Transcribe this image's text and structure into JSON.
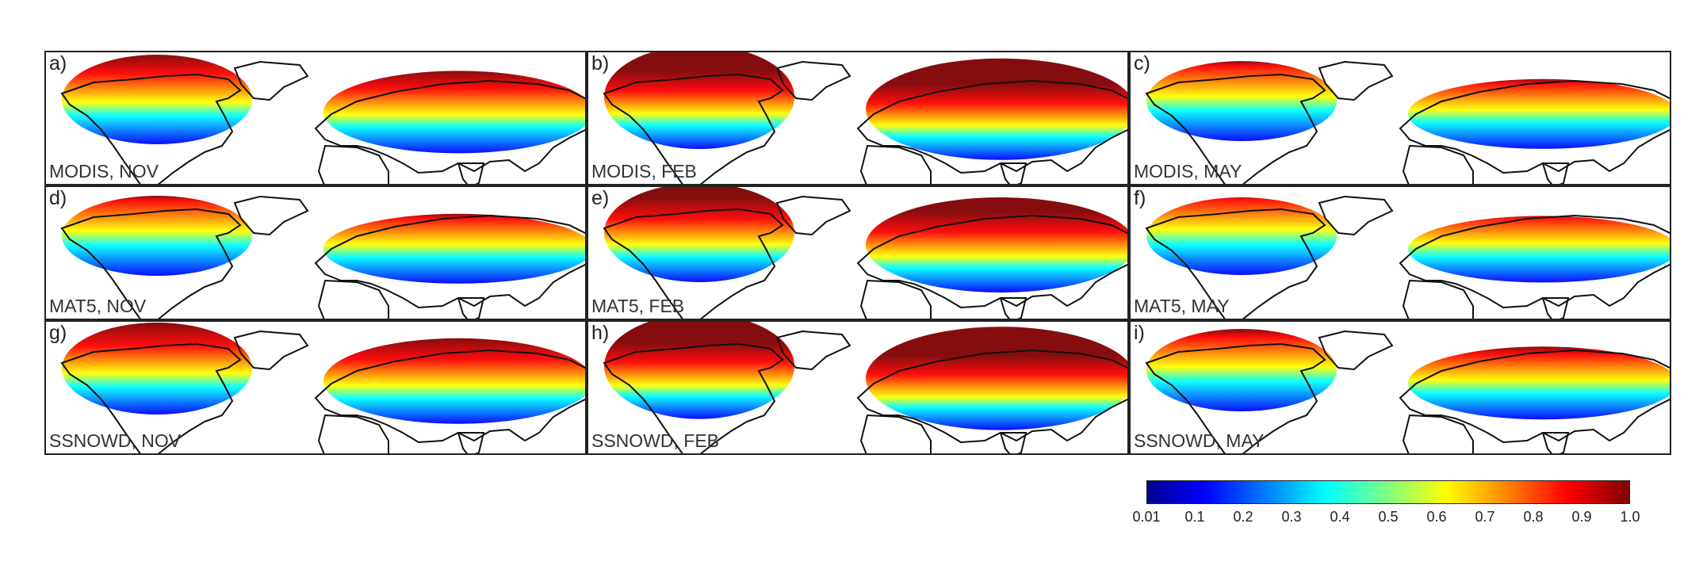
{
  "panels": [
    {
      "letter": "a)",
      "caption": "MODIS, NOV",
      "level": 0.55
    },
    {
      "letter": "b)",
      "caption": "MODIS, FEB",
      "level": 0.85
    },
    {
      "letter": "c)",
      "caption": "MODIS, MAY",
      "level": 0.35
    },
    {
      "letter": "d)",
      "caption": "MAT5, NOV",
      "level": 0.35
    },
    {
      "letter": "e)",
      "caption": "MAT5, FEB",
      "level": 0.75
    },
    {
      "letter": "f)",
      "caption": "MAT5, MAY",
      "level": 0.3
    },
    {
      "letter": "g)",
      "caption": "SSNOWD, NOV",
      "level": 0.6
    },
    {
      "letter": "h)",
      "caption": "SSNOWD, FEB",
      "level": 0.88
    },
    {
      "letter": "i)",
      "caption": "SSNOWD, MAY",
      "level": 0.4
    }
  ],
  "colorbar": {
    "ticks": [
      "0.01",
      "0.1",
      "0.2",
      "0.3",
      "0.4",
      "0.5",
      "0.6",
      "0.7",
      "0.8",
      "0.9",
      "1.0"
    ],
    "colors": [
      "#00008f",
      "#0000ff",
      "#0080ff",
      "#00ffff",
      "#80ff80",
      "#ffff00",
      "#ff8000",
      "#ff0000",
      "#800000"
    ]
  }
}
